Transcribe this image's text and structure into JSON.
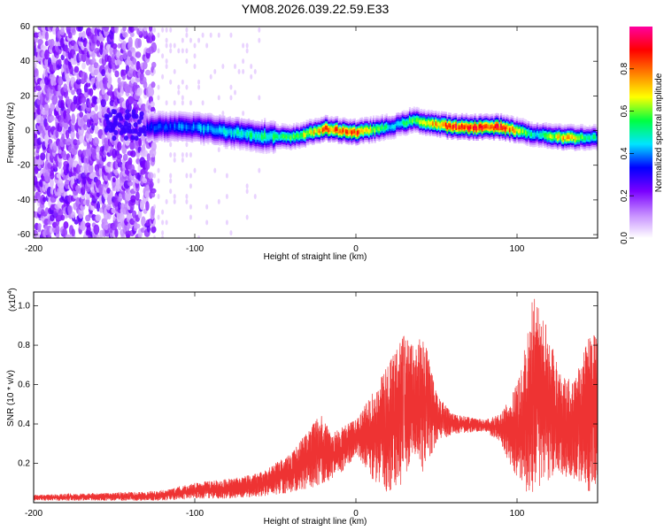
{
  "chart_data": [
    {
      "type": "heatmap",
      "title": "YM08.2026.039.22.59.E33",
      "xlabel": "Height of straight line (km)",
      "ylabel": "Frequency (Hz)",
      "xlim": [
        -200,
        150
      ],
      "ylim": [
        -62,
        60
      ],
      "xticks": [
        -200,
        -100,
        0,
        100
      ],
      "xtick_labels": [
        "-200",
        "-100",
        "0",
        "100"
      ],
      "yticks": [
        60,
        40,
        20,
        0,
        -20,
        -40,
        -60
      ],
      "ytick_labels": [
        "60",
        "40",
        "20",
        "0",
        "-20",
        "-40",
        "-60"
      ],
      "colorbar": {
        "label": "Normalized spectral amplitude",
        "range": [
          0,
          1
        ],
        "ticks": [
          0.0,
          0.2,
          0.4,
          0.6,
          0.8
        ],
        "tick_labels": [
          "0.0",
          "0.2",
          "0.4",
          "0.6",
          "0.8"
        ],
        "colors": [
          "#ffffff",
          "#c58cff",
          "#7a00ff",
          "#0000ff",
          "#00e5ff",
          "#00ff40",
          "#ffff00",
          "#ff8000",
          "#ff0000",
          "#ff00a0"
        ]
      },
      "ridge": {
        "description_points_x": [
          -130,
          -100,
          -60,
          -40,
          -20,
          0,
          20,
          35,
          60,
          90,
          110,
          130,
          150
        ],
        "center_hz": [
          2,
          2,
          -3,
          -4,
          1,
          -1,
          2,
          6,
          2,
          2,
          -2,
          -4,
          -4
        ],
        "peak_amplitude": [
          0.35,
          0.45,
          0.55,
          0.6,
          0.85,
          0.9,
          0.5,
          0.6,
          0.95,
          0.95,
          0.5,
          0.8,
          0.5
        ]
      }
    },
    {
      "type": "line",
      "xlabel": "Height of straight line (km)",
      "ylabel": "SNR (10 * v/v)",
      "scale_label": "(x10",
      "scale_exponent": "4",
      "scale_suffix": ")",
      "xlim": [
        -200,
        150
      ],
      "ylim": [
        0,
        1.07
      ],
      "xticks": [
        -200,
        -100,
        0,
        100
      ],
      "xtick_labels": [
        "-200",
        "-100",
        "0",
        "100"
      ],
      "yticks": [
        0.2,
        0.4,
        0.6,
        0.8,
        1.0
      ],
      "ytick_labels": [
        "0.2",
        "0.4",
        "0.6",
        "0.8",
        "1.0"
      ],
      "series": [
        {
          "name": "SNR",
          "color": "#ee3333",
          "envelope_x": [
            -200,
            -150,
            -120,
            -100,
            -80,
            -60,
            -40,
            -30,
            -22,
            -15,
            -5,
            0,
            10,
            20,
            30,
            35,
            42,
            50,
            60,
            80,
            90,
            100,
            105,
            110,
            118,
            125,
            135,
            145,
            150
          ],
          "envelope_min": [
            0.01,
            0.01,
            0.01,
            0.02,
            0.02,
            0.03,
            0.05,
            0.07,
            0.09,
            0.12,
            0.18,
            0.25,
            0.12,
            0.05,
            0.1,
            0.25,
            0.15,
            0.3,
            0.35,
            0.36,
            0.3,
            0.1,
            0.05,
            0.05,
            0.1,
            0.15,
            0.1,
            0.05,
            0.1
          ],
          "envelope_max": [
            0.04,
            0.05,
            0.06,
            0.1,
            0.12,
            0.15,
            0.25,
            0.36,
            0.45,
            0.35,
            0.4,
            0.42,
            0.55,
            0.7,
            0.85,
            0.8,
            0.85,
            0.55,
            0.45,
            0.42,
            0.45,
            0.6,
            0.8,
            1.05,
            0.9,
            0.7,
            0.6,
            0.85,
            0.85
          ]
        }
      ]
    }
  ]
}
